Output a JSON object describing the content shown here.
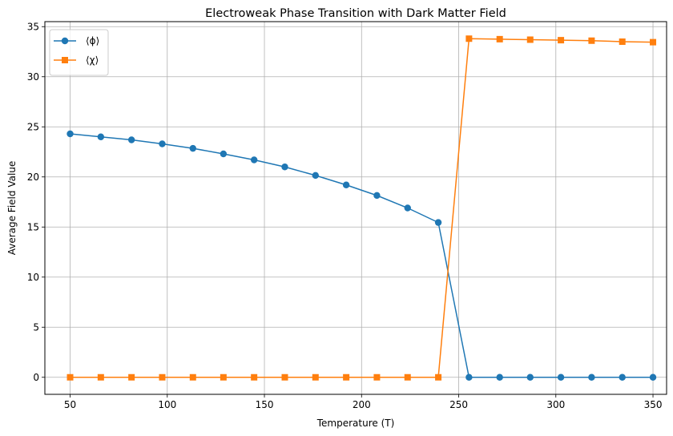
{
  "chart_data": {
    "type": "line",
    "title": "Electroweak Phase Transition with Dark Matter Field",
    "xlabel": "Temperature (T)",
    "ylabel": "Average Field Value",
    "xlim": [
      37,
      357
    ],
    "ylim": [
      -1.7,
      35.5
    ],
    "xticks": [
      50,
      100,
      150,
      200,
      250,
      300,
      350
    ],
    "yticks": [
      0,
      5,
      10,
      15,
      20,
      25,
      30,
      35
    ],
    "grid": true,
    "legend_position": "upper-left",
    "x": [
      50,
      65.8,
      81.6,
      97.4,
      113.2,
      128.9,
      144.7,
      160.5,
      176.3,
      192.1,
      207.9,
      223.7,
      239.5,
      255.3,
      271.1,
      286.8,
      302.6,
      318.4,
      334.2,
      350
    ],
    "series": [
      {
        "name": "⟨ϕ⟩",
        "color": "#1f77b4",
        "marker": "circle",
        "values": [
          24.3,
          24.0,
          23.7,
          23.3,
          22.85,
          22.3,
          21.7,
          21.0,
          20.15,
          19.2,
          18.15,
          16.9,
          15.45,
          0,
          0,
          0,
          0,
          0,
          0,
          0
        ]
      },
      {
        "name": "⟨χ⟩",
        "color": "#ff7f0e",
        "marker": "square",
        "values": [
          0,
          0,
          0,
          0,
          0,
          0,
          0,
          0,
          0,
          0,
          0,
          0,
          0,
          33.8,
          33.75,
          33.7,
          33.65,
          33.6,
          33.5,
          33.45
        ]
      }
    ]
  }
}
